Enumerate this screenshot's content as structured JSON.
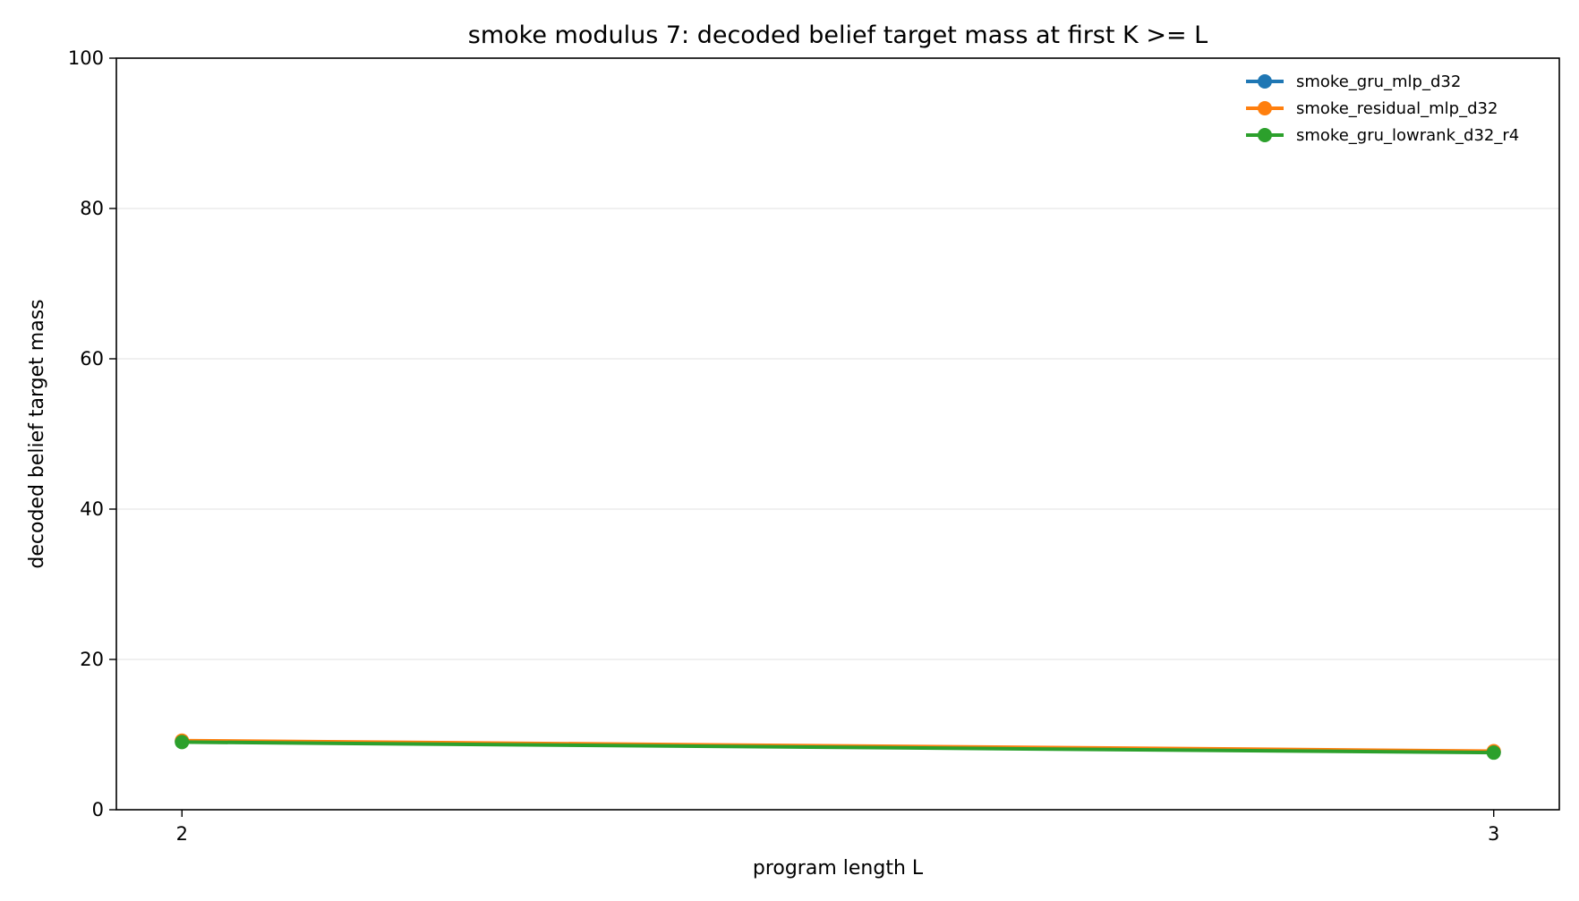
{
  "chart_data": {
    "type": "line",
    "title": "smoke modulus 7: decoded belief target mass at first K >= L",
    "xlabel": "program length L",
    "ylabel": "decoded belief target mass",
    "x": [
      2,
      3
    ],
    "x_ticks": [
      "2",
      "3"
    ],
    "xlim": [
      1.95,
      3.05
    ],
    "ylim": [
      0,
      100
    ],
    "y_ticks": [
      "0",
      "20",
      "40",
      "60",
      "80",
      "100"
    ],
    "y_tick_values": [
      0,
      20,
      40,
      60,
      80,
      100
    ],
    "grid": "horizontal",
    "legend_position": "top-right",
    "series": [
      {
        "name": "smoke_gru_mlp_d32",
        "color": "#1f77b4",
        "values": [
          9.1,
          7.7
        ]
      },
      {
        "name": "smoke_residual_mlp_d32",
        "color": "#ff7f0e",
        "values": [
          9.2,
          7.8
        ]
      },
      {
        "name": "smoke_gru_lowrank_d32_r4",
        "color": "#2ca02c",
        "values": [
          9.0,
          7.6
        ]
      }
    ]
  }
}
